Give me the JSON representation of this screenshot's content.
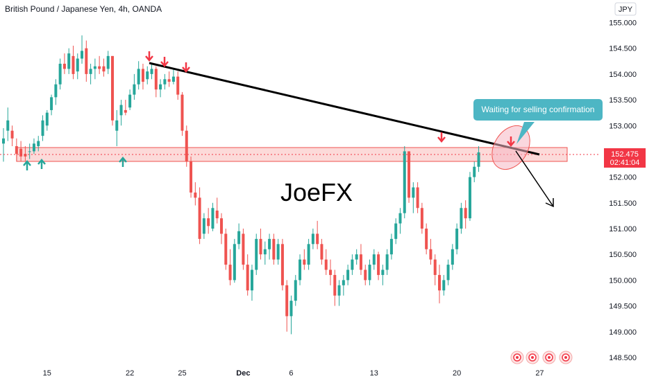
{
  "header": {
    "title": "British Pound / Japanese Yen, 4h, OANDA"
  },
  "currency_button": {
    "label": "JPY"
  },
  "watermark": {
    "text": "JoeFX"
  },
  "callout": {
    "text": "Waiting for selling confirmation"
  },
  "price_label": {
    "price": "152.475",
    "countdown": "02:41:04"
  },
  "colors": {
    "up": "#26a69a",
    "down": "#ef5350",
    "zone_fill": "#fbd3d2",
    "zone_border": "#ef5350",
    "trendline": "#000000",
    "callout": "#4db6c4",
    "price_tag": "#f23645",
    "arrow_down": "#f23645",
    "arrow_up": "#26a69a"
  },
  "chart_data": {
    "type": "candlestick",
    "ylim": [
      148.4,
      155.2
    ],
    "y_ticks": [
      "155.000",
      "154.500",
      "154.000",
      "153.500",
      "153.000",
      "152.500",
      "152.000",
      "151.500",
      "151.000",
      "150.500",
      "150.000",
      "149.500",
      "149.000",
      "148.500"
    ],
    "x_ticks": [
      {
        "label": "15",
        "i": 10,
        "bold": false
      },
      {
        "label": "22",
        "i": 29,
        "bold": false
      },
      {
        "label": "25",
        "i": 41,
        "bold": false
      },
      {
        "label": "Dec",
        "i": 55,
        "bold": true
      },
      {
        "label": "6",
        "i": 66,
        "bold": false
      },
      {
        "label": "13",
        "i": 85,
        "bold": false
      },
      {
        "label": "20",
        "i": 104,
        "bold": false
      },
      {
        "label": "27",
        "i": 123,
        "bold": false
      }
    ],
    "candles": [
      [
        152.65,
        152.95,
        152.3,
        152.75
      ],
      [
        152.9,
        153.35,
        152.7,
        153.1
      ],
      [
        152.9,
        153.0,
        152.6,
        152.75
      ],
      [
        152.6,
        152.75,
        152.3,
        152.45
      ],
      [
        152.55,
        152.7,
        152.3,
        152.4
      ],
      [
        152.45,
        152.6,
        152.3,
        152.4
      ],
      [
        152.5,
        152.65,
        152.35,
        152.5
      ],
      [
        152.5,
        152.75,
        152.45,
        152.65
      ],
      [
        152.6,
        152.8,
        152.5,
        152.7
      ],
      [
        152.8,
        153.2,
        152.7,
        153.1
      ],
      [
        153.0,
        153.3,
        152.9,
        153.25
      ],
      [
        153.3,
        153.6,
        153.2,
        153.55
      ],
      [
        153.55,
        153.9,
        153.4,
        153.8
      ],
      [
        153.8,
        154.3,
        153.7,
        154.2
      ],
      [
        154.2,
        154.4,
        154.0,
        154.1
      ],
      [
        154.1,
        154.5,
        154.0,
        154.4
      ],
      [
        154.35,
        154.55,
        153.9,
        154.0
      ],
      [
        154.05,
        154.4,
        153.9,
        154.3
      ],
      [
        154.3,
        154.75,
        154.2,
        154.45
      ],
      [
        154.5,
        154.65,
        153.85,
        154.0
      ],
      [
        154.0,
        154.2,
        153.8,
        154.1
      ],
      [
        154.1,
        154.3,
        153.9,
        154.15
      ],
      [
        154.15,
        154.35,
        154.0,
        154.1
      ],
      [
        154.15,
        154.3,
        153.95,
        154.05
      ],
      [
        154.1,
        154.45,
        154.0,
        154.35
      ],
      [
        154.35,
        154.35,
        153.0,
        153.1
      ],
      [
        152.9,
        153.3,
        152.6,
        153.1
      ],
      [
        153.2,
        153.5,
        153.0,
        153.4
      ],
      [
        153.3,
        153.5,
        153.2,
        153.25
      ],
      [
        153.35,
        153.7,
        153.3,
        153.6
      ],
      [
        153.6,
        154.0,
        153.5,
        153.8
      ],
      [
        153.8,
        154.25,
        153.7,
        154.1
      ],
      [
        154.1,
        154.2,
        153.7,
        153.85
      ],
      [
        153.9,
        154.15,
        153.8,
        154.05
      ],
      [
        154.0,
        154.2,
        153.9,
        154.1
      ],
      [
        154.1,
        154.15,
        153.55,
        153.7
      ],
      [
        153.7,
        153.9,
        153.55,
        153.8
      ],
      [
        153.8,
        154.0,
        153.7,
        153.9
      ],
      [
        153.9,
        154.05,
        153.75,
        153.85
      ],
      [
        153.85,
        154.1,
        153.8,
        153.95
      ],
      [
        153.95,
        154.05,
        153.5,
        153.6
      ],
      [
        153.6,
        153.65,
        152.8,
        152.9
      ],
      [
        152.9,
        153.0,
        152.2,
        152.3
      ],
      [
        152.3,
        152.4,
        151.6,
        151.7
      ],
      [
        151.7,
        151.9,
        151.45,
        151.6
      ],
      [
        151.6,
        151.8,
        150.7,
        150.8
      ],
      [
        150.9,
        151.3,
        150.8,
        151.2
      ],
      [
        151.2,
        151.4,
        150.9,
        151.05
      ],
      [
        151.0,
        151.5,
        150.95,
        151.4
      ],
      [
        151.35,
        151.6,
        151.1,
        151.2
      ],
      [
        151.2,
        151.3,
        150.7,
        150.9
      ],
      [
        150.9,
        151.0,
        150.2,
        150.3
      ],
      [
        150.3,
        150.6,
        149.9,
        150.0
      ],
      [
        150.0,
        150.8,
        149.95,
        150.7
      ],
      [
        150.7,
        151.1,
        150.6,
        150.95
      ],
      [
        150.9,
        151.0,
        150.2,
        150.3
      ],
      [
        150.3,
        150.5,
        149.7,
        149.8
      ],
      [
        149.8,
        150.3,
        149.6,
        150.2
      ],
      [
        150.2,
        150.9,
        150.1,
        150.8
      ],
      [
        150.8,
        151.0,
        150.4,
        150.5
      ],
      [
        150.5,
        150.75,
        150.3,
        150.6
      ],
      [
        150.6,
        150.9,
        150.4,
        150.8
      ],
      [
        150.8,
        150.9,
        150.3,
        150.4
      ],
      [
        150.4,
        150.8,
        150.3,
        150.7
      ],
      [
        150.7,
        150.8,
        149.8,
        149.9
      ],
      [
        149.9,
        150.0,
        149.0,
        149.3
      ],
      [
        149.3,
        149.7,
        148.95,
        149.6
      ],
      [
        149.6,
        150.1,
        149.5,
        150.0
      ],
      [
        150.0,
        150.5,
        149.9,
        150.4
      ],
      [
        150.4,
        150.6,
        150.2,
        150.3
      ],
      [
        150.3,
        150.8,
        150.2,
        150.7
      ],
      [
        150.7,
        151.0,
        150.6,
        150.9
      ],
      [
        150.9,
        151.15,
        150.6,
        150.7
      ],
      [
        150.7,
        150.8,
        150.3,
        150.4
      ],
      [
        150.4,
        150.6,
        150.1,
        150.2
      ],
      [
        150.2,
        150.4,
        149.9,
        150.1
      ],
      [
        150.1,
        150.2,
        149.5,
        149.7
      ],
      [
        149.7,
        150.0,
        149.5,
        149.9
      ],
      [
        149.9,
        150.1,
        149.7,
        150.0
      ],
      [
        150.0,
        150.3,
        149.9,
        150.2
      ],
      [
        150.2,
        150.5,
        150.1,
        150.4
      ],
      [
        150.4,
        150.6,
        150.3,
        150.5
      ],
      [
        150.5,
        150.7,
        150.1,
        150.2
      ],
      [
        150.2,
        150.3,
        149.9,
        150.0
      ],
      [
        150.0,
        150.4,
        149.9,
        150.3
      ],
      [
        150.3,
        150.6,
        150.2,
        150.5
      ],
      [
        150.5,
        150.55,
        150.0,
        150.1
      ],
      [
        150.1,
        150.3,
        149.9,
        150.2
      ],
      [
        150.2,
        150.6,
        150.1,
        150.5
      ],
      [
        150.5,
        150.9,
        150.4,
        150.8
      ],
      [
        150.8,
        151.2,
        150.7,
        151.1
      ],
      [
        151.1,
        151.4,
        150.9,
        151.3
      ],
      [
        151.3,
        152.6,
        151.2,
        152.5
      ],
      [
        152.5,
        152.5,
        151.5,
        151.6
      ],
      [
        151.6,
        151.9,
        151.3,
        151.8
      ],
      [
        151.8,
        151.9,
        151.3,
        151.4
      ],
      [
        151.4,
        151.5,
        150.9,
        151.0
      ],
      [
        151.0,
        151.1,
        150.5,
        150.6
      ],
      [
        150.6,
        150.8,
        150.3,
        150.4
      ],
      [
        150.4,
        150.5,
        149.9,
        150.1
      ],
      [
        150.1,
        150.3,
        149.55,
        149.8
      ],
      [
        149.8,
        150.1,
        149.7,
        150.0
      ],
      [
        150.0,
        150.4,
        149.9,
        150.3
      ],
      [
        150.3,
        150.7,
        150.2,
        150.6
      ],
      [
        150.6,
        151.1,
        150.5,
        151.0
      ],
      [
        151.0,
        151.5,
        150.9,
        151.4
      ],
      [
        151.4,
        151.55,
        151.0,
        151.2
      ],
      [
        151.2,
        152.1,
        151.15,
        152.0
      ],
      [
        152.0,
        152.3,
        151.9,
        152.2
      ],
      [
        152.2,
        152.6,
        152.1,
        152.48
      ]
    ]
  }
}
